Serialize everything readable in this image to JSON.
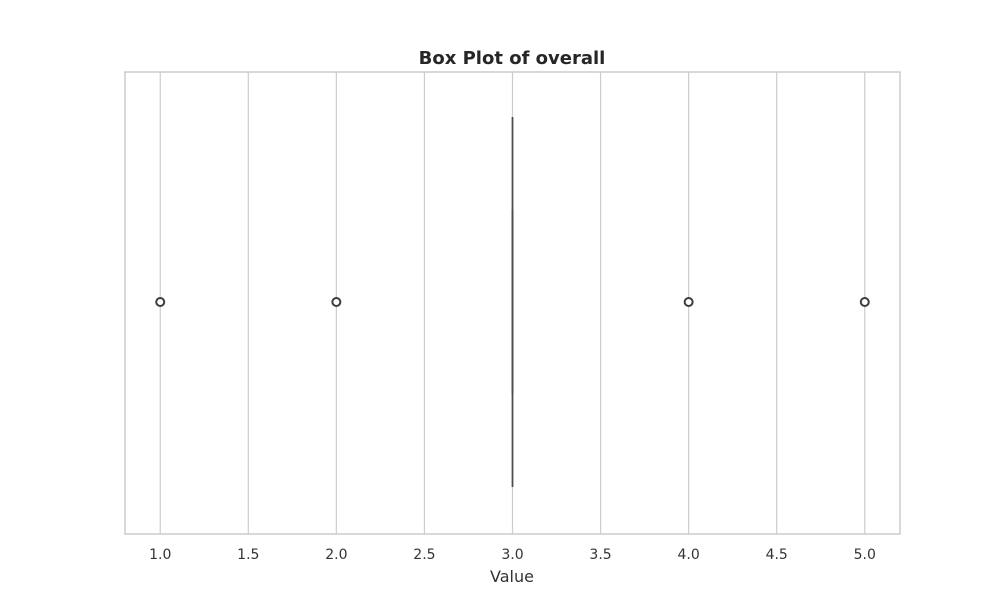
{
  "chart_data": {
    "type": "box",
    "title": "Box Plot of overall",
    "xlabel": "Value",
    "ylabel": "",
    "xlim": [
      0.8,
      5.2
    ],
    "xticks": [
      "1.0",
      "1.5",
      "2.0",
      "2.5",
      "3.0",
      "3.5",
      "4.0",
      "4.5",
      "5.0"
    ],
    "grid": true,
    "orientation": "horizontal",
    "series": [
      {
        "whisker_low": 3.0,
        "q1": 3.0,
        "median": 3.0,
        "q3": 3.0,
        "whisker_high": 3.0,
        "outliers": [
          1.0,
          2.0,
          4.0,
          5.0
        ]
      }
    ],
    "colors": {
      "box": "#4c4c4c",
      "grid": "#cccccc",
      "frame": "#cccccc",
      "outlier_edge": "#3d3d3d"
    }
  }
}
